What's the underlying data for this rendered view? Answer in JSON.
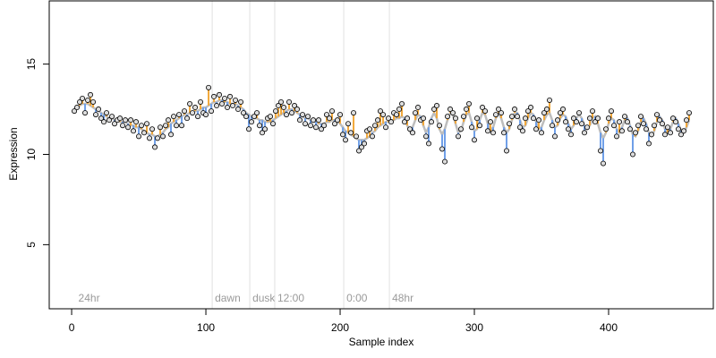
{
  "chart_data": {
    "type": "scatter",
    "xlabel": "Sample index",
    "ylabel": "Expression",
    "xlim": [
      -16.7,
      478
    ],
    "ylim": [
      1.45,
      18.5
    ],
    "xticks": [
      0,
      100,
      200,
      300,
      400
    ],
    "yticks": [
      5,
      10,
      15
    ],
    "colors": {
      "point": "#dddddd",
      "above": "#f2a83a",
      "below": "#6f9fe8",
      "fit": "#bdbdbd",
      "marker": "#e0e0e0"
    },
    "annotations": [
      {
        "label": "24hr",
        "x": 3,
        "line": false
      },
      {
        "label": "dawn",
        "x": 104.7,
        "line": true
      },
      {
        "label": "dusk",
        "x": 132.7,
        "line": true
      },
      {
        "label": "12:00",
        "x": 151.3,
        "line": true
      },
      {
        "label": "0:00",
        "x": 202.7,
        "line": true
      },
      {
        "label": "48hr",
        "x": 236.7,
        "line": true
      }
    ],
    "x": [
      2,
      4,
      6,
      8,
      10,
      12,
      14,
      16,
      18,
      20,
      22,
      24,
      26,
      28,
      30,
      32,
      34,
      36,
      38,
      40,
      42,
      44,
      46,
      48,
      50,
      52,
      54,
      56,
      58,
      60,
      62,
      64,
      66,
      68,
      70,
      72,
      74,
      76,
      78,
      80,
      82,
      84,
      86,
      88,
      90,
      92,
      94,
      96,
      98,
      100,
      102,
      104,
      106,
      108,
      110,
      112,
      114,
      116,
      118,
      120,
      122,
      124,
      126,
      128,
      130,
      132,
      134,
      136,
      138,
      140,
      142,
      144,
      146,
      148,
      150,
      152,
      154,
      156,
      158,
      160,
      162,
      164,
      166,
      168,
      170,
      172,
      174,
      176,
      178,
      180,
      182,
      184,
      186,
      188,
      190,
      192,
      194,
      196,
      198,
      200,
      202,
      204,
      206,
      208,
      210,
      212,
      214,
      216,
      218,
      220,
      222,
      224,
      226,
      228,
      230,
      232,
      234,
      236,
      238,
      240,
      242,
      244,
      246,
      248,
      250,
      252,
      254,
      256,
      258,
      260,
      262,
      264,
      266,
      268,
      270,
      272,
      274,
      276,
      278,
      280,
      282,
      284,
      286,
      288,
      290,
      292,
      294,
      296,
      298,
      300,
      302,
      304,
      306,
      308,
      310,
      312,
      314,
      316,
      318,
      320,
      322,
      324,
      326,
      328,
      330,
      332,
      334,
      336,
      338,
      340,
      342,
      344,
      346,
      348,
      350,
      352,
      354,
      356,
      358,
      360,
      362,
      364,
      366,
      368,
      370,
      372,
      374,
      376,
      378,
      380,
      382,
      384,
      386,
      388,
      390,
      392,
      394,
      396,
      398,
      400,
      402,
      404,
      406,
      408,
      410,
      412,
      414,
      416,
      418,
      420,
      422,
      424,
      426,
      428,
      430,
      432,
      434,
      436,
      438,
      440,
      442,
      444,
      446,
      448,
      450,
      452,
      454,
      456,
      458,
      460
    ],
    "values": [
      12.4,
      12.6,
      12.9,
      13.1,
      12.3,
      13.0,
      13.3,
      12.9,
      12.2,
      12.5,
      12.0,
      11.8,
      12.3,
      11.9,
      12.1,
      11.7,
      11.9,
      12.0,
      11.6,
      11.9,
      11.5,
      11.9,
      11.3,
      11.8,
      11.0,
      11.6,
      11.2,
      11.7,
      10.9,
      11.4,
      10.4,
      10.9,
      11.5,
      11.0,
      11.6,
      11.9,
      11.1,
      12.1,
      11.6,
      12.2,
      11.6,
      12.4,
      12.0,
      12.8,
      12.3,
      12.6,
      12.1,
      12.9,
      12.3,
      12.2,
      13.7,
      12.4,
      13.2,
      12.7,
      13.3,
      12.8,
      13.1,
      12.6,
      13.2,
      12.7,
      13.0,
      12.5,
      12.9,
      12.3,
      12.1,
      11.4,
      11.8,
      12.1,
      12.3,
      11.6,
      11.2,
      11.4,
      12.0,
      12.1,
      11.7,
      12.4,
      12.7,
      12.9,
      12.6,
      12.2,
      12.9,
      12.3,
      12.7,
      12.5,
      11.9,
      12.2,
      11.7,
      12.1,
      11.6,
      11.9,
      11.5,
      11.9,
      11.4,
      11.6,
      12.2,
      12.0,
      12.4,
      11.7,
      11.9,
      12.2,
      11.1,
      10.8,
      11.7,
      11.2,
      12.3,
      11.0,
      10.2,
      10.4,
      10.6,
      11.3,
      11.4,
      11.0,
      11.6,
      11.9,
      12.4,
      12.2,
      11.5,
      12.0,
      11.8,
      12.3,
      12.2,
      12.5,
      12.8,
      11.8,
      12.0,
      11.4,
      11.2,
      12.3,
      12.6,
      11.9,
      12.0,
      11.0,
      10.6,
      11.8,
      12.5,
      12.7,
      11.6,
      10.3,
      9.6,
      12.1,
      12.5,
      12.3,
      12.0,
      11.0,
      11.4,
      12.1,
      12.5,
      12.8,
      11.5,
      10.8,
      12.0,
      11.6,
      12.6,
      12.4,
      11.3,
      11.8,
      11.2,
      12.2,
      12.5,
      12.3,
      11.2,
      10.2,
      11.7,
      12.1,
      12.5,
      12.1,
      11.5,
      11.3,
      12.0,
      12.4,
      12.6,
      12.0,
      11.4,
      11.9,
      11.2,
      12.3,
      12.5,
      13.0,
      11.6,
      11.0,
      11.9,
      12.3,
      12.5,
      11.8,
      11.4,
      11.1,
      12.0,
      11.8,
      12.3,
      11.7,
      11.2,
      11.5,
      12.0,
      12.4,
      11.8,
      12.0,
      10.2,
      9.5,
      11.4,
      12.0,
      12.4,
      11.6,
      11.0,
      11.8,
      11.3,
      12.1,
      11.8,
      11.4,
      10.0,
      11.2,
      11.6,
      12.1,
      11.7,
      11.4,
      10.6,
      11.1,
      11.6,
      12.2,
      11.9,
      11.7,
      11.1,
      11.5,
      11.2,
      12.0,
      11.8,
      11.4,
      11.1,
      11.3,
      11.9,
      12.3
    ],
    "fitted": [
      12.5,
      12.6,
      12.7,
      12.8,
      12.8,
      12.8,
      12.7,
      12.6,
      12.5,
      12.4,
      12.3,
      12.2,
      12.1,
      12.0,
      12.0,
      11.9,
      11.9,
      11.8,
      11.8,
      11.8,
      11.7,
      11.6,
      11.6,
      11.5,
      11.5,
      11.4,
      11.3,
      11.2,
      11.1,
      11.1,
      11.0,
      11.0,
      11.1,
      11.2,
      11.4,
      11.5,
      11.7,
      11.8,
      11.9,
      12.0,
      12.1,
      12.2,
      12.2,
      12.3,
      12.3,
      12.4,
      12.4,
      12.5,
      12.6,
      12.6,
      12.7,
      12.8,
      12.9,
      12.9,
      13.0,
      13.0,
      12.9,
      12.9,
      12.8,
      12.8,
      12.8,
      12.7,
      12.6,
      12.5,
      12.3,
      12.2,
      12.1,
      12.0,
      12.0,
      11.9,
      11.9,
      11.8,
      11.8,
      11.8,
      11.9,
      12.0,
      12.1,
      12.2,
      12.3,
      12.4,
      12.5,
      12.5,
      12.4,
      12.3,
      12.2,
      12.1,
      12.0,
      12.0,
      11.9,
      11.8,
      11.8,
      11.7,
      11.7,
      11.7,
      11.8,
      11.8,
      11.9,
      11.9,
      11.8,
      11.7,
      11.5,
      11.3,
      11.2,
      11.1,
      11.0,
      10.9,
      10.8,
      10.8,
      10.8,
      10.9,
      11.0,
      11.2,
      11.3,
      11.5,
      11.6,
      11.7,
      11.8,
      11.8,
      11.9,
      11.9,
      12.0,
      12.0,
      12.1,
      12.0,
      11.6,
      11.3,
      11.5,
      11.9,
      12.2,
      12.1,
      11.6,
      11.2,
      11.5,
      12.0,
      12.3,
      12.0,
      11.4,
      11.1,
      11.4,
      11.9,
      12.3,
      12.2,
      11.7,
      11.2,
      11.3,
      11.8,
      12.2,
      12.3,
      11.8,
      11.3,
      11.4,
      11.9,
      12.3,
      12.2,
      11.7,
      11.3,
      11.5,
      12.0,
      12.3,
      12.0,
      11.5,
      11.2,
      11.4,
      11.9,
      12.3,
      12.3,
      11.9,
      11.5,
      11.6,
      12.0,
      12.3,
      12.2,
      11.8,
      11.4,
      11.5,
      11.9,
      12.2,
      12.3,
      11.9,
      11.5,
      11.6,
      12.0,
      12.2,
      12.1,
      11.7,
      11.4,
      11.6,
      12.0,
      12.2,
      12.0,
      11.6,
      11.4,
      11.6,
      12.0,
      12.1,
      11.7,
      11.2,
      10.9,
      11.2,
      11.7,
      12.0,
      11.9,
      11.4,
      11.2,
      11.5,
      11.9,
      12.0,
      11.6,
      11.1,
      11.0,
      11.3,
      11.8,
      12.0,
      11.7,
      11.2,
      11.0,
      11.3,
      11.8,
      12.1,
      11.9,
      11.4,
      11.2,
      11.4,
      11.8,
      12.0,
      11.7,
      11.3,
      11.2,
      11.5,
      11.9
    ]
  }
}
